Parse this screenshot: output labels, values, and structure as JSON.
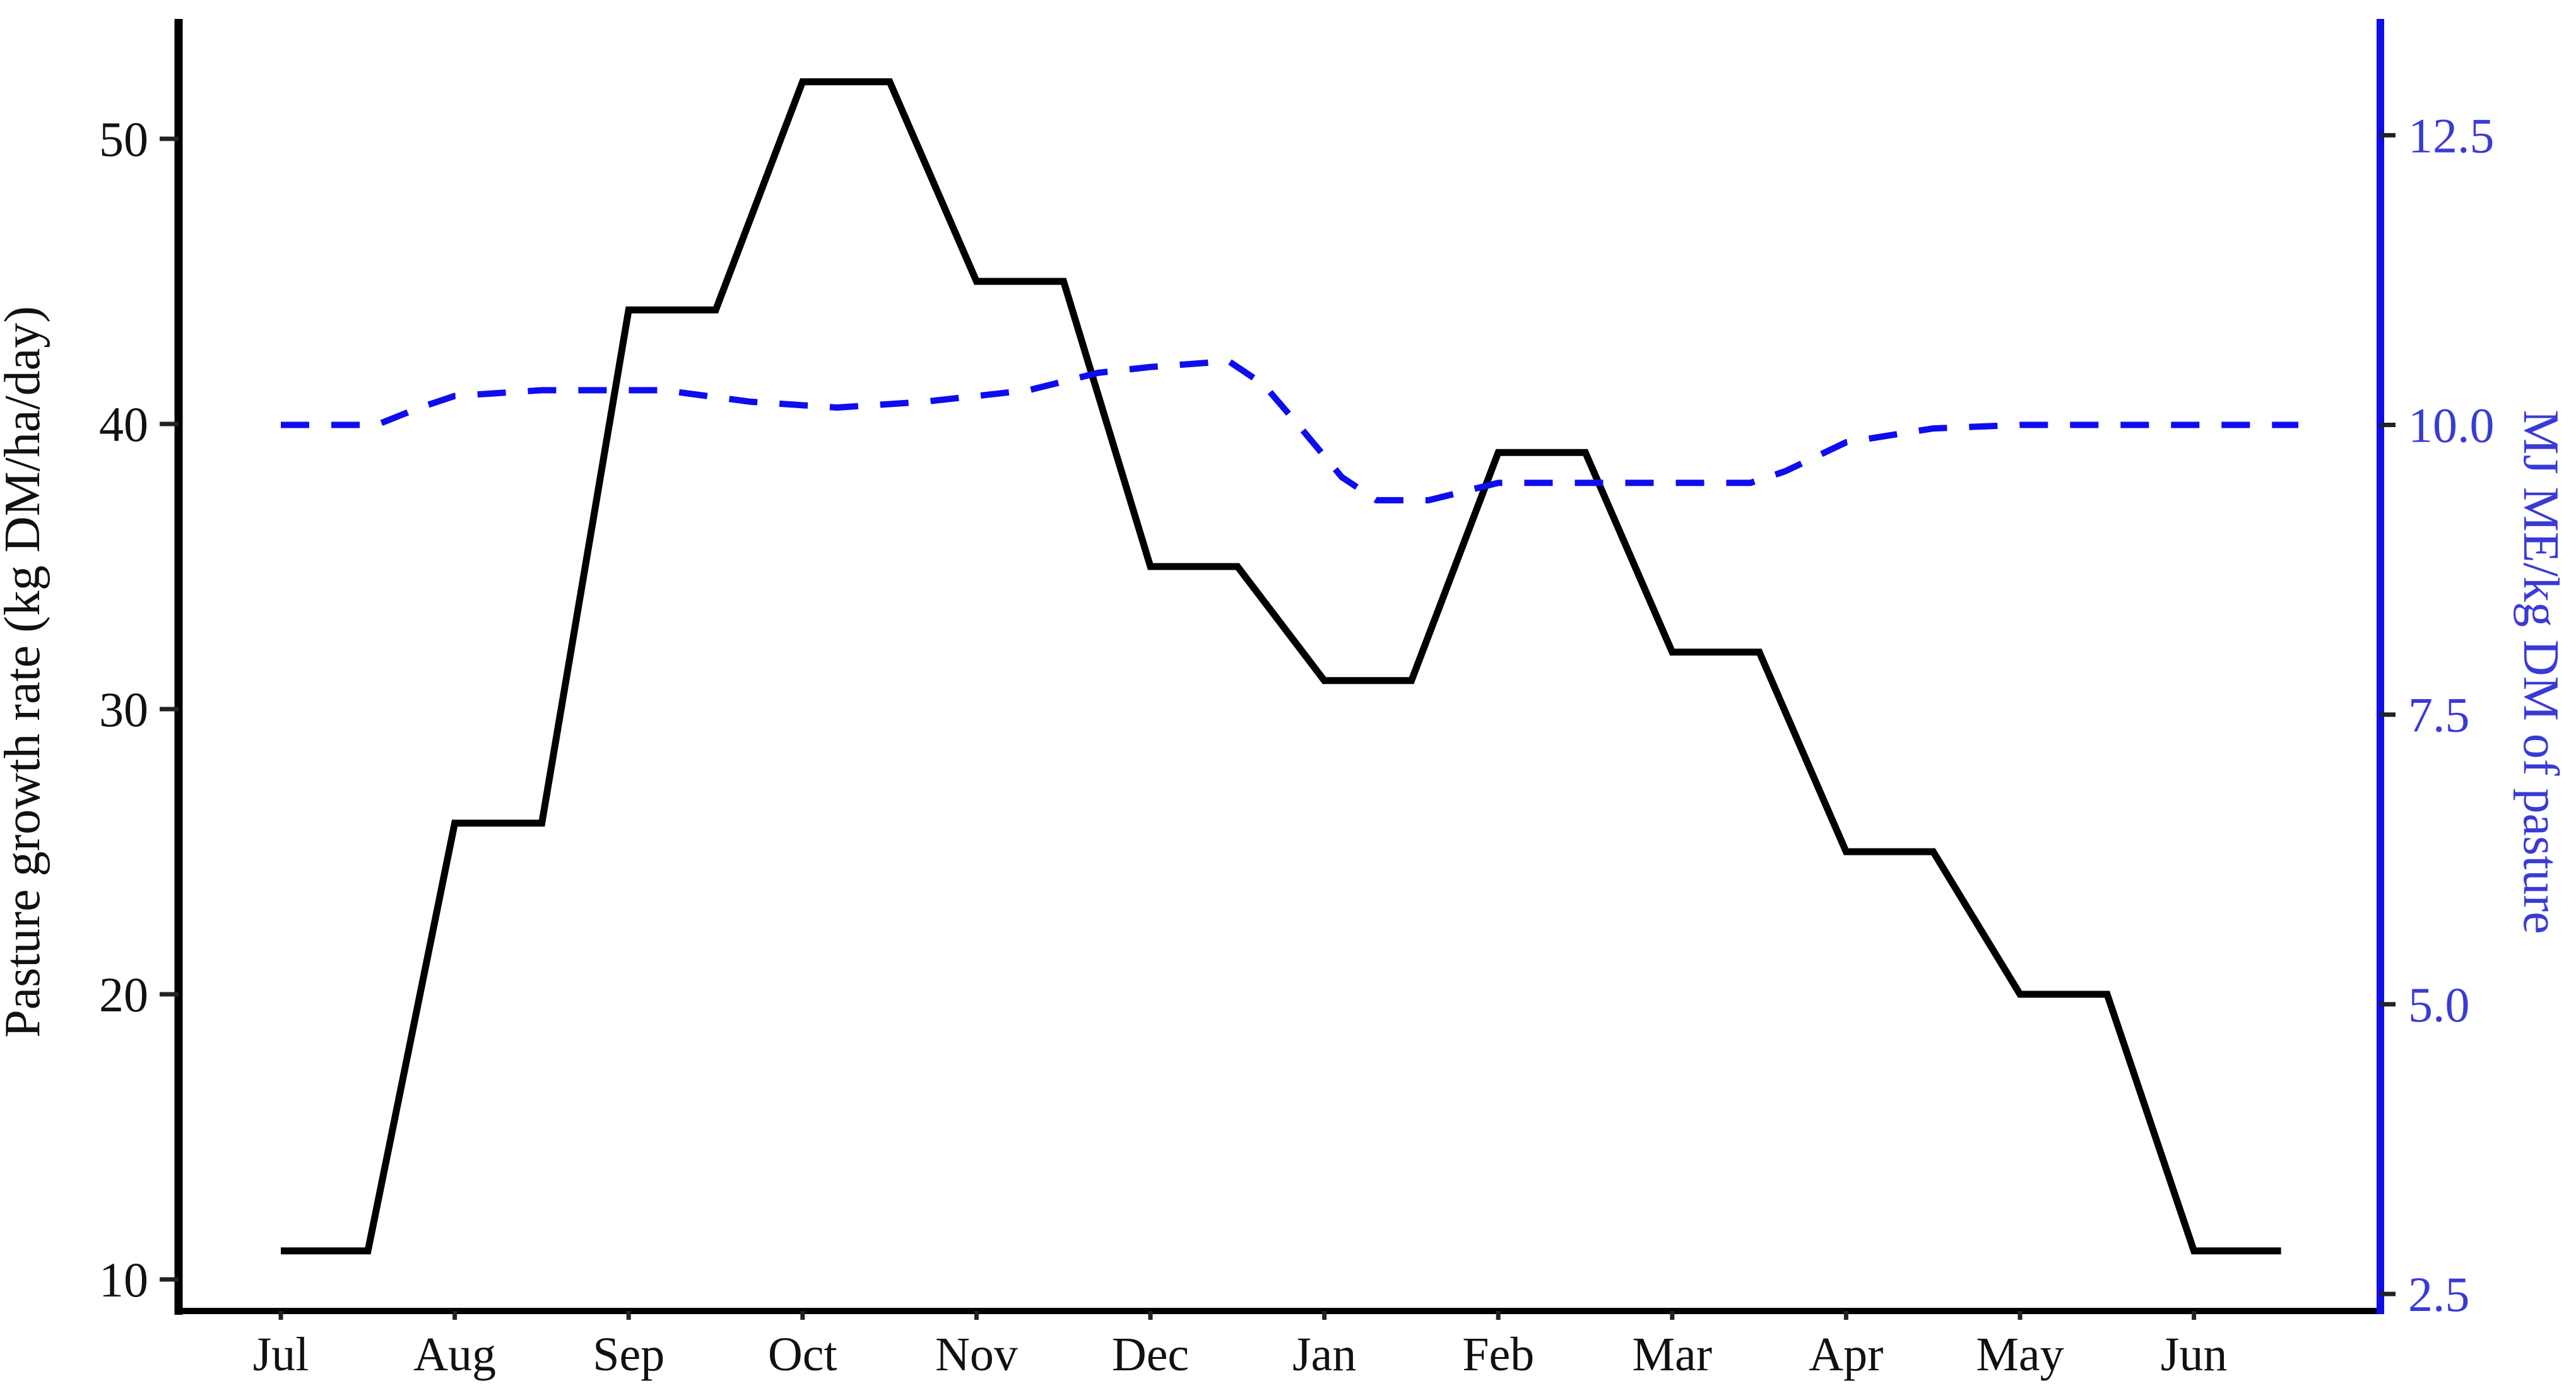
{
  "chart_data": {
    "type": "line",
    "title": "",
    "categories": [
      "Jul",
      "Aug",
      "Sep",
      "Oct",
      "Nov",
      "Dec",
      "Jan",
      "Feb",
      "Mar",
      "Apr",
      "May",
      "Jun"
    ],
    "left_axis": {
      "label": "Pasture growth rate (kg DM/ha/day)",
      "ticks": [
        10,
        20,
        30,
        40,
        50
      ],
      "min": 10,
      "max": 53.3,
      "color": "#000000",
      "label_color": "#111111"
    },
    "right_axis": {
      "label": "MJ ME/kg DM of pasture",
      "ticks": [
        "2.5",
        "5.0",
        "7.5",
        "10.0",
        "12.5"
      ],
      "min": 2.5,
      "max": 13.3,
      "color": "#0d0dee",
      "label_color": "#3a3ad6"
    },
    "grid": false,
    "legend_position": "none",
    "series": [
      {
        "name": "Pasture growth rate (kg DM/ha/day)",
        "axis": "left",
        "color": "#000000",
        "line_style": "solid",
        "draw": "step-plateau",
        "plateau_fraction": 0.5,
        "monthly_values": [
          11,
          26,
          44,
          52,
          45,
          35,
          31,
          39,
          32,
          25,
          20,
          11
        ]
      },
      {
        "name": "MJ ME/kg DM of pasture",
        "axis": "right",
        "color": "#0d0dee",
        "line_style": "dashed",
        "draw": "poly",
        "points": [
          [
            0.0,
            10.0
          ],
          [
            0.55,
            10.0
          ],
          [
            0.8,
            10.15
          ],
          [
            1.0,
            10.25
          ],
          [
            1.5,
            10.3
          ],
          [
            2.2,
            10.3
          ],
          [
            2.7,
            10.2
          ],
          [
            3.2,
            10.15
          ],
          [
            3.7,
            10.2
          ],
          [
            4.3,
            10.3
          ],
          [
            4.7,
            10.45
          ],
          [
            5.0,
            10.5
          ],
          [
            5.45,
            10.55
          ],
          [
            5.65,
            10.35
          ],
          [
            5.85,
            10.0
          ],
          [
            6.1,
            9.55
          ],
          [
            6.3,
            9.35
          ],
          [
            6.6,
            9.35
          ],
          [
            7.0,
            9.5
          ],
          [
            8.45,
            9.5
          ],
          [
            8.65,
            9.6
          ],
          [
            9.0,
            9.85
          ],
          [
            9.5,
            9.97
          ],
          [
            10.0,
            10.0
          ],
          [
            11.6,
            10.0
          ]
        ]
      }
    ]
  }
}
